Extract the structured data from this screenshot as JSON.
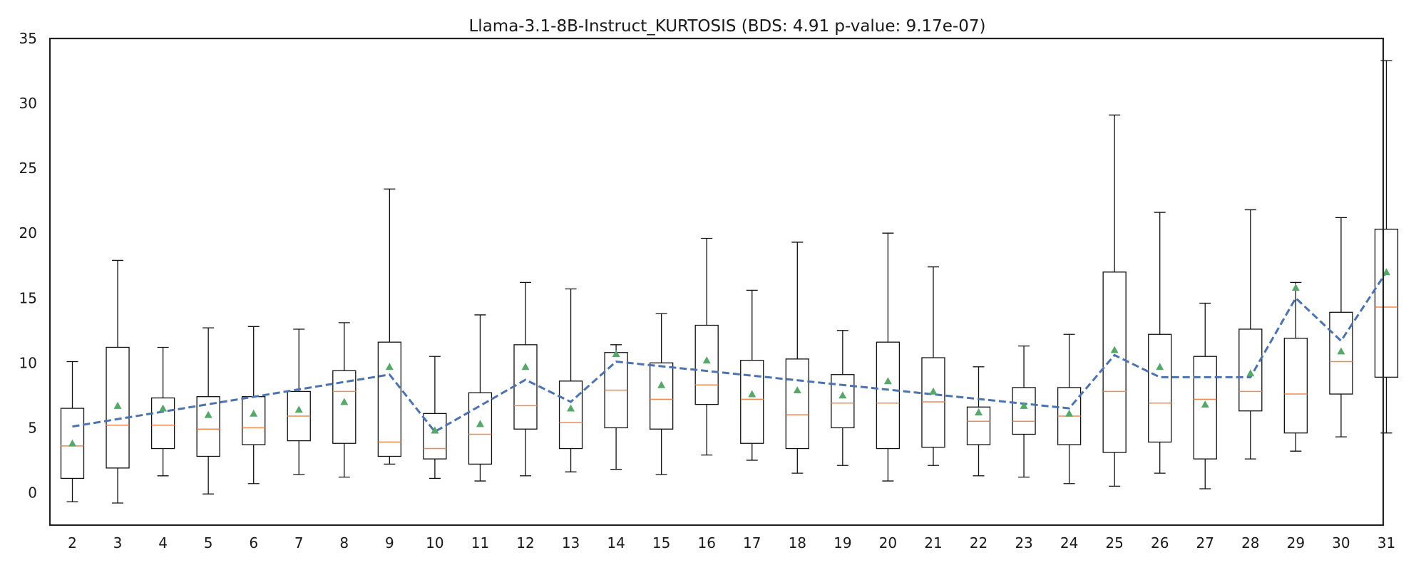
{
  "chart_data": {
    "type": "box",
    "title": "Llama-3.1-8B-Instruct_KURTOSIS (BDS: 4.91 p-value: 9.17e-07)",
    "xlabel": "",
    "ylabel": "",
    "ylim": [
      -2.5,
      35
    ],
    "yticks": [
      0,
      5,
      10,
      15,
      20,
      25,
      30,
      35
    ],
    "grid": false,
    "categories": [
      "2",
      "3",
      "4",
      "5",
      "6",
      "7",
      "8",
      "9",
      "10",
      "11",
      "12",
      "13",
      "14",
      "15",
      "16",
      "17",
      "18",
      "19",
      "20",
      "21",
      "22",
      "23",
      "24",
      "25",
      "26",
      "27",
      "28",
      "29",
      "30",
      "31"
    ],
    "boxes": [
      {
        "whislo": -0.7,
        "q1": 1.1,
        "med": 3.6,
        "q3": 6.5,
        "whishi": 10.1,
        "mean": 3.8
      },
      {
        "whislo": -0.8,
        "q1": 1.9,
        "med": 5.2,
        "q3": 11.2,
        "whishi": 17.9,
        "mean": 6.7
      },
      {
        "whislo": 1.3,
        "q1": 3.4,
        "med": 5.2,
        "q3": 7.3,
        "whishi": 11.2,
        "mean": 6.5
      },
      {
        "whislo": -0.1,
        "q1": 2.8,
        "med": 4.9,
        "q3": 7.4,
        "whishi": 12.7,
        "mean": 6.0
      },
      {
        "whislo": 0.7,
        "q1": 3.7,
        "med": 5.0,
        "q3": 7.4,
        "whishi": 12.8,
        "mean": 6.1
      },
      {
        "whislo": 1.4,
        "q1": 4.0,
        "med": 5.9,
        "q3": 7.8,
        "whishi": 12.6,
        "mean": 6.4
      },
      {
        "whislo": 1.2,
        "q1": 3.8,
        "med": 7.8,
        "q3": 9.4,
        "whishi": 13.1,
        "mean": 7.0
      },
      {
        "whislo": 2.2,
        "q1": 2.8,
        "med": 3.9,
        "q3": 11.6,
        "whishi": 23.4,
        "mean": 9.7
      },
      {
        "whislo": 1.1,
        "q1": 2.6,
        "med": 3.4,
        "q3": 6.1,
        "whishi": 10.5,
        "mean": 4.8
      },
      {
        "whislo": 0.9,
        "q1": 2.2,
        "med": 4.5,
        "q3": 7.7,
        "whishi": 13.7,
        "mean": 5.3
      },
      {
        "whislo": 1.3,
        "q1": 4.9,
        "med": 6.7,
        "q3": 11.4,
        "whishi": 16.2,
        "mean": 9.7
      },
      {
        "whislo": 1.6,
        "q1": 3.4,
        "med": 5.4,
        "q3": 8.6,
        "whishi": 15.7,
        "mean": 6.5
      },
      {
        "whislo": 1.8,
        "q1": 5.0,
        "med": 7.9,
        "q3": 10.8,
        "whishi": 11.4,
        "mean": 10.7
      },
      {
        "whislo": 1.4,
        "q1": 4.9,
        "med": 7.2,
        "q3": 10.0,
        "whishi": 13.8,
        "mean": 8.3
      },
      {
        "whislo": 2.9,
        "q1": 6.8,
        "med": 8.3,
        "q3": 12.9,
        "whishi": 19.6,
        "mean": 10.2
      },
      {
        "whislo": 2.5,
        "q1": 3.8,
        "med": 7.2,
        "q3": 10.2,
        "whishi": 15.6,
        "mean": 7.6
      },
      {
        "whislo": 1.5,
        "q1": 3.4,
        "med": 6.0,
        "q3": 10.3,
        "whishi": 19.3,
        "mean": 7.9
      },
      {
        "whislo": 2.1,
        "q1": 5.0,
        "med": 6.9,
        "q3": 9.1,
        "whishi": 12.5,
        "mean": 7.5
      },
      {
        "whislo": 0.9,
        "q1": 3.4,
        "med": 6.9,
        "q3": 11.6,
        "whishi": 20.0,
        "mean": 8.6
      },
      {
        "whislo": 2.1,
        "q1": 3.5,
        "med": 7.0,
        "q3": 10.4,
        "whishi": 17.4,
        "mean": 7.8
      },
      {
        "whislo": 1.3,
        "q1": 3.7,
        "med": 5.5,
        "q3": 6.6,
        "whishi": 9.7,
        "mean": 6.2
      },
      {
        "whislo": 1.2,
        "q1": 4.5,
        "med": 5.5,
        "q3": 8.1,
        "whishi": 11.3,
        "mean": 6.7
      },
      {
        "whislo": 0.7,
        "q1": 3.7,
        "med": 5.9,
        "q3": 8.1,
        "whishi": 12.2,
        "mean": 6.1
      },
      {
        "whislo": 0.5,
        "q1": 3.1,
        "med": 7.8,
        "q3": 17.0,
        "whishi": 29.1,
        "mean": 11.0
      },
      {
        "whislo": 1.5,
        "q1": 3.9,
        "med": 6.9,
        "q3": 12.2,
        "whishi": 21.6,
        "mean": 9.7
      },
      {
        "whislo": 0.3,
        "q1": 2.6,
        "med": 7.2,
        "q3": 10.5,
        "whishi": 14.6,
        "mean": 6.8
      },
      {
        "whislo": 2.6,
        "q1": 6.3,
        "med": 7.8,
        "q3": 12.6,
        "whishi": 21.8,
        "mean": 9.2
      },
      {
        "whislo": 3.2,
        "q1": 4.6,
        "med": 7.6,
        "q3": 11.9,
        "whishi": 16.2,
        "mean": 15.8
      },
      {
        "whislo": 4.3,
        "q1": 7.6,
        "med": 10.1,
        "q3": 13.9,
        "whishi": 21.2,
        "mean": 10.9
      },
      {
        "whislo": 4.6,
        "q1": 8.9,
        "med": 14.3,
        "q3": 20.3,
        "whishi": 33.3,
        "mean": 17.0
      }
    ],
    "trend_line": {
      "style": "dashed",
      "x": [
        "2",
        "9",
        "10",
        "12",
        "13",
        "14",
        "24",
        "25",
        "26",
        "28",
        "29",
        "30",
        "31"
      ],
      "y": [
        5.1,
        9.1,
        4.7,
        8.7,
        7.0,
        10.1,
        6.5,
        10.6,
        8.9,
        8.9,
        15.0,
        11.7,
        17.0
      ]
    },
    "colors": {
      "box": "#111111",
      "median": "#f08a50",
      "mean_marker": "#55a868",
      "trend_line": "#4c72b0"
    },
    "mean_marker_shape": "triangle"
  }
}
